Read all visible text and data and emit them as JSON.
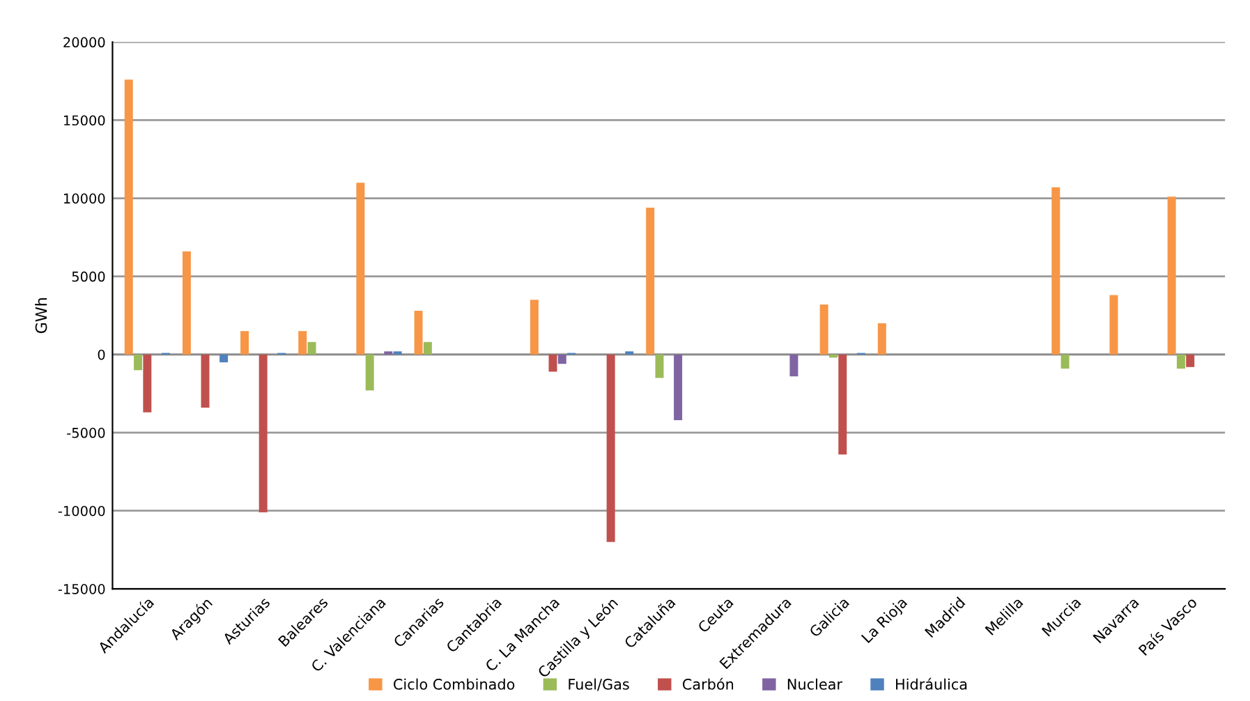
{
  "chart_data": {
    "type": "bar",
    "ylabel": "GWh",
    "categories": [
      "Andalucía",
      "Aragón",
      "Asturias",
      "Baleares",
      "C. Valenciana",
      "Canarias",
      "Cantabria",
      "C. La Mancha",
      "Castilla y León",
      "Cataluña",
      "Ceuta",
      "Extremadura",
      "Galicia",
      "La Rioja",
      "Madrid",
      "Melilla",
      "Murcia",
      "Navarra",
      "País Vasco"
    ],
    "series": [
      {
        "name": "Ciclo Combinado",
        "color": "#f79646",
        "values": [
          17600,
          6600,
          1500,
          1500,
          11000,
          2800,
          0,
          3500,
          0,
          9400,
          0,
          0,
          3200,
          2000,
          0,
          0,
          10700,
          3800,
          10100
        ]
      },
      {
        "name": "Fuel/Gas",
        "color": "#9bbb59",
        "values": [
          -1000,
          0,
          0,
          800,
          -2300,
          800,
          0,
          0,
          0,
          -1500,
          0,
          0,
          -200,
          0,
          0,
          0,
          -900,
          0,
          -900
        ]
      },
      {
        "name": "Carbón",
        "color": "#c0504d",
        "values": [
          -3700,
          -3400,
          -10100,
          0,
          0,
          0,
          0,
          -1100,
          -12000,
          0,
          0,
          0,
          -6400,
          0,
          0,
          0,
          0,
          0,
          -800
        ]
      },
      {
        "name": "Nuclear",
        "color": "#8064a2",
        "values": [
          0,
          0,
          0,
          0,
          200,
          0,
          0,
          -600,
          0,
          -4200,
          0,
          -1400,
          0,
          0,
          0,
          0,
          0,
          0,
          0
        ]
      },
      {
        "name": "Hidráulica",
        "color": "#4f81bd",
        "values": [
          100,
          -500,
          100,
          0,
          200,
          0,
          0,
          100,
          200,
          0,
          0,
          0,
          100,
          0,
          0,
          0,
          0,
          0,
          0
        ]
      }
    ],
    "ylim": [
      -15000,
      20000
    ],
    "yticks": [
      -15000,
      -10000,
      -5000,
      0,
      5000,
      10000,
      15000,
      20000
    ],
    "grid": "y",
    "legend": "bottom"
  }
}
